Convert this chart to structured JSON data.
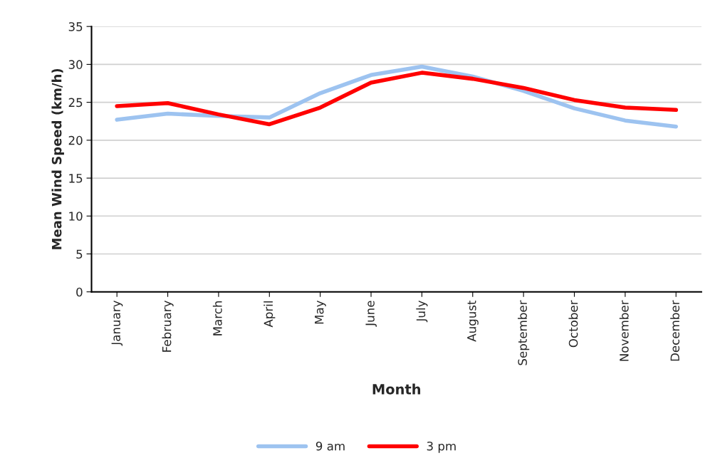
{
  "chart_data": {
    "type": "line",
    "xlabel": "Month",
    "ylabel": "Mean Wind Speed (km/h)",
    "categories": [
      "January",
      "February",
      "March",
      "April",
      "May",
      "June",
      "July",
      "August",
      "September",
      "October",
      "November",
      "December"
    ],
    "series": [
      {
        "name": "9 am",
        "color": "#9dc3f0",
        "values": [
          22.7,
          23.5,
          23.2,
          23.0,
          26.2,
          28.6,
          29.7,
          28.4,
          26.5,
          24.2,
          22.6,
          21.8
        ]
      },
      {
        "name": "3 pm",
        "color": "#ff0000",
        "values": [
          24.5,
          24.9,
          23.4,
          22.1,
          24.3,
          27.6,
          28.9,
          28.1,
          26.9,
          25.3,
          24.3,
          24.0
        ]
      }
    ],
    "ylim": [
      0,
      35
    ],
    "yticks": [
      0,
      5,
      10,
      15,
      20,
      25,
      30,
      35
    ],
    "grid": "y",
    "legend": "bottom",
    "marker": "none",
    "line_style": "solid"
  }
}
